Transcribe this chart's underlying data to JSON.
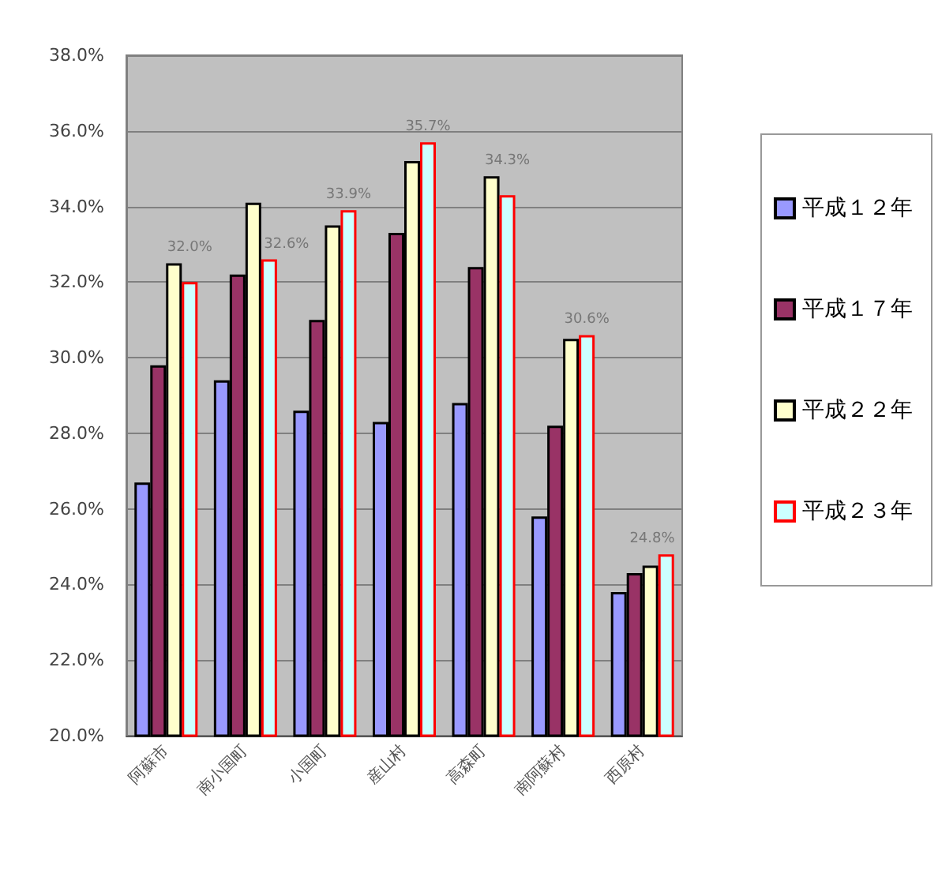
{
  "chart_data": {
    "type": "bar",
    "categories": [
      "阿蘇市",
      "南小国町",
      "小国町",
      "産山村",
      "高森町",
      "南阿蘇村",
      "西原村"
    ],
    "series": [
      {
        "name": "平成１２年",
        "color": "#9999ff",
        "values": [
          26.7,
          29.4,
          28.6,
          28.3,
          28.8,
          25.8,
          23.8
        ]
      },
      {
        "name": "平成１７年",
        "color": "#993366",
        "values": [
          29.8,
          32.2,
          31.0,
          33.3,
          32.4,
          28.2,
          24.3
        ]
      },
      {
        "name": "平成２２年",
        "color": "#ffffcc",
        "values": [
          32.5,
          34.1,
          33.5,
          35.2,
          34.8,
          30.5,
          24.5
        ]
      },
      {
        "name": "平成２３年",
        "color": "#ccffff",
        "values": [
          32.0,
          32.6,
          33.9,
          35.7,
          34.3,
          30.6,
          24.8
        ],
        "value_labels": [
          "32.0%",
          "32.6%",
          "33.9%",
          "35.7%",
          "34.3%",
          "30.6%",
          "24.8%"
        ]
      }
    ],
    "ylim": [
      20,
      38
    ],
    "yticks": [
      {
        "value": 20,
        "label": "20.0%"
      },
      {
        "value": 22,
        "label": "22.0%"
      },
      {
        "value": 24,
        "label": "24.0%"
      },
      {
        "value": 26,
        "label": "26.0%"
      },
      {
        "value": 28,
        "label": "28.0%"
      },
      {
        "value": 30,
        "label": "30.0%"
      },
      {
        "value": 32,
        "label": "32.0%"
      },
      {
        "value": 34,
        "label": "34.0%"
      },
      {
        "value": 36,
        "label": "36.0%"
      },
      {
        "value": 38,
        "label": "38.0%"
      }
    ],
    "grid": "y",
    "legend": "right"
  }
}
